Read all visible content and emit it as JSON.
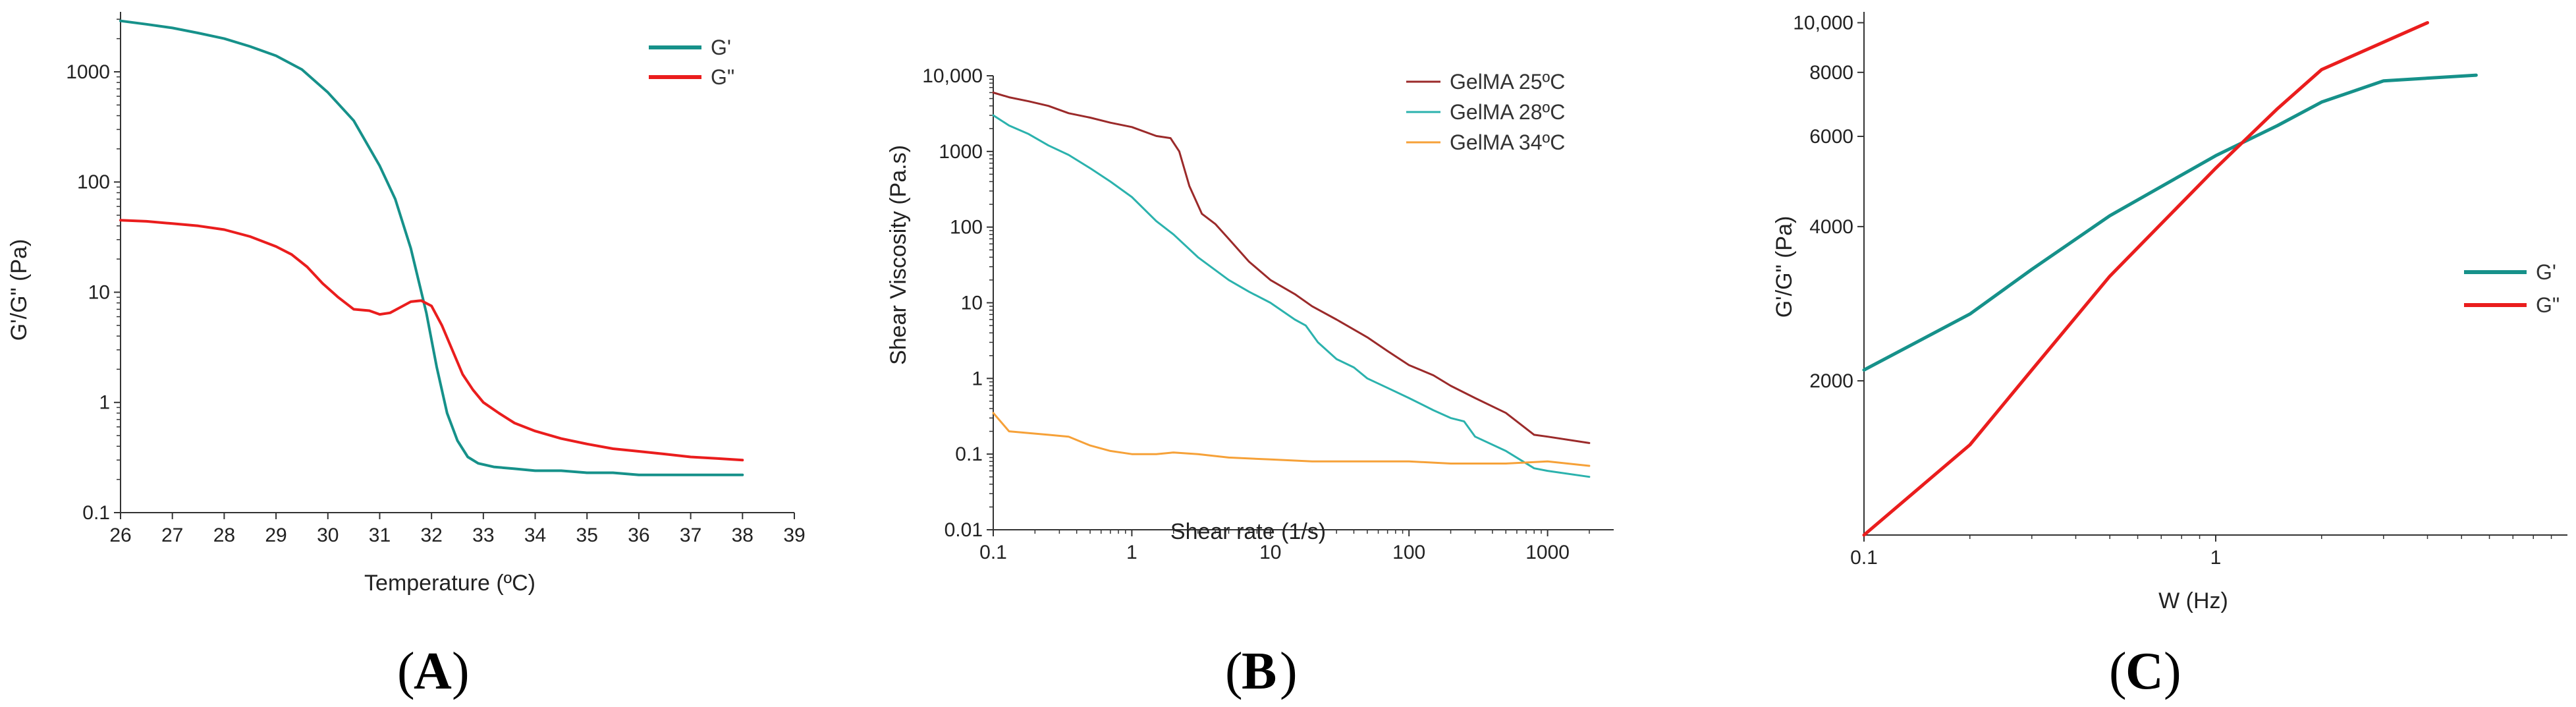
{
  "colors": {
    "teal": "#16918a",
    "red": "#ea1d1d",
    "brown": "#9b2a2a",
    "teal_light": "#2bb2ad",
    "orange": "#f6a138",
    "axis": "#333333"
  },
  "chart_data": [
    {
      "id": "A",
      "panel_label": "A",
      "type": "line",
      "xlabel": "Temperature (ºC)",
      "ylabel": "G'/G\" (Pa)",
      "xlim": [
        26,
        39
      ],
      "ylim": [
        0.1,
        3500
      ],
      "yscale": "log",
      "xticks": [
        {
          "v": 26,
          "label": "26"
        },
        {
          "v": 27,
          "label": "27"
        },
        {
          "v": 28,
          "label": "28"
        },
        {
          "v": 29,
          "label": "29"
        },
        {
          "v": 30,
          "label": "30"
        },
        {
          "v": 31,
          "label": "31"
        },
        {
          "v": 32,
          "label": "32"
        },
        {
          "v": 33,
          "label": "33"
        },
        {
          "v": 34,
          "label": "34"
        },
        {
          "v": 35,
          "label": "35"
        },
        {
          "v": 36,
          "label": "36"
        },
        {
          "v": 37,
          "label": "37"
        },
        {
          "v": 38,
          "label": "38"
        },
        {
          "v": 39,
          "label": "39"
        }
      ],
      "yticks": [
        {
          "v": 0.1,
          "label": "0.1"
        },
        {
          "v": 1,
          "label": "1"
        },
        {
          "v": 10,
          "label": "10"
        },
        {
          "v": 100,
          "label": "100"
        },
        {
          "v": 1000,
          "label": "1000"
        }
      ],
      "legend_position": "top-right",
      "series": [
        {
          "name": "G'",
          "color": "#16918a",
          "x": [
            26,
            26.5,
            27,
            27.5,
            28,
            28.5,
            29,
            29.5,
            30,
            30.5,
            31,
            31.3,
            31.6,
            31.9,
            32.1,
            32.3,
            32.5,
            32.7,
            32.9,
            33.2,
            33.6,
            34,
            34.5,
            35,
            35.5,
            36,
            36.5,
            37,
            37.5,
            38
          ],
          "y": [
            2900,
            2700,
            2500,
            2250,
            2000,
            1700,
            1400,
            1050,
            650,
            360,
            140,
            70,
            25,
            6.5,
            2.1,
            0.8,
            0.45,
            0.32,
            0.28,
            0.26,
            0.25,
            0.24,
            0.24,
            0.23,
            0.23,
            0.22,
            0.22,
            0.22,
            0.22,
            0.22
          ]
        },
        {
          "name": "G\"",
          "color": "#ea1d1d",
          "x": [
            26,
            26.5,
            27,
            27.5,
            28,
            28.5,
            29,
            29.3,
            29.6,
            29.9,
            30.2,
            30.5,
            30.8,
            31,
            31.2,
            31.4,
            31.6,
            31.8,
            32,
            32.2,
            32.4,
            32.6,
            32.8,
            33,
            33.3,
            33.6,
            34,
            34.5,
            35,
            35.5,
            36,
            36.5,
            37,
            37.5,
            38
          ],
          "y": [
            45,
            44,
            42,
            40,
            37,
            32,
            26,
            22,
            17,
            12,
            9,
            7,
            6.8,
            6.3,
            6.5,
            7.3,
            8.2,
            8.4,
            7.5,
            5,
            3,
            1.8,
            1.3,
            1,
            0.8,
            0.65,
            0.55,
            0.47,
            0.42,
            0.38,
            0.36,
            0.34,
            0.32,
            0.31,
            0.3
          ]
        }
      ]
    },
    {
      "id": "B",
      "panel_label": "B",
      "type": "line",
      "xlabel": "Shear rate (1/s)",
      "ylabel": "Shear Viscosity (Pa.s)",
      "xscale": "log",
      "yscale": "log",
      "xlim": [
        0.1,
        3000
      ],
      "ylim": [
        0.01,
        10000
      ],
      "xticks": [
        {
          "v": 0.1,
          "label": "0.1"
        },
        {
          "v": 1,
          "label": "1"
        },
        {
          "v": 10,
          "label": "10"
        },
        {
          "v": 100,
          "label": "100"
        },
        {
          "v": 1000,
          "label": "1000"
        }
      ],
      "yticks": [
        {
          "v": 0.01,
          "label": "0.01"
        },
        {
          "v": 0.1,
          "label": "0.1"
        },
        {
          "v": 1,
          "label": "1"
        },
        {
          "v": 10,
          "label": "10"
        },
        {
          "v": 100,
          "label": "100"
        },
        {
          "v": 1000,
          "label": "1000"
        },
        {
          "v": 10000,
          "label": "10,000"
        }
      ],
      "legend_position": "top-right",
      "series": [
        {
          "name": "GelMA 25ºC",
          "color": "#9b2a2a",
          "x": [
            0.1,
            0.13,
            0.18,
            0.25,
            0.35,
            0.5,
            0.7,
            1,
            1.5,
            1.9,
            2.2,
            2.6,
            3.2,
            4,
            5,
            7,
            10,
            15,
            20,
            30,
            50,
            70,
            100,
            150,
            200,
            300,
            500,
            800,
            1000,
            2000
          ],
          "y": [
            6000,
            5200,
            4600,
            4000,
            3200,
            2800,
            2400,
            2100,
            1600,
            1500,
            1000,
            350,
            150,
            110,
            70,
            35,
            20,
            13,
            9,
            6,
            3.5,
            2.3,
            1.5,
            1.1,
            0.8,
            0.55,
            0.35,
            0.18,
            0.17,
            0.14
          ]
        },
        {
          "name": "GelMA 28ºC",
          "color": "#2bb2ad",
          "x": [
            0.1,
            0.13,
            0.18,
            0.25,
            0.35,
            0.5,
            0.7,
            1,
            1.5,
            2,
            3,
            5,
            7,
            10,
            15,
            18,
            22,
            30,
            40,
            50,
            70,
            100,
            150,
            200,
            250,
            300,
            500,
            800,
            1000,
            2000
          ],
          "y": [
            3000,
            2200,
            1700,
            1200,
            900,
            600,
            400,
            250,
            120,
            80,
            40,
            20,
            14,
            10,
            6,
            5,
            3,
            1.8,
            1.4,
            1,
            0.75,
            0.55,
            0.38,
            0.3,
            0.27,
            0.17,
            0.11,
            0.065,
            0.06,
            0.05
          ]
        },
        {
          "name": "GelMA 34ºC",
          "color": "#f6a138",
          "x": [
            0.1,
            0.13,
            0.18,
            0.25,
            0.35,
            0.5,
            0.7,
            1,
            1.5,
            2,
            3,
            5,
            10,
            20,
            50,
            100,
            200,
            500,
            1000,
            2000
          ],
          "y": [
            0.35,
            0.2,
            0.19,
            0.18,
            0.17,
            0.13,
            0.11,
            0.1,
            0.1,
            0.105,
            0.1,
            0.09,
            0.085,
            0.08,
            0.08,
            0.08,
            0.075,
            0.075,
            0.08,
            0.07
          ]
        }
      ]
    },
    {
      "id": "C",
      "panel_label": "C",
      "type": "line",
      "xlabel": "W (Hz)",
      "ylabel": "G'/G\" (Pa)",
      "xscale": "log",
      "yscale": "log",
      "xlim": [
        0.1,
        10
      ],
      "ylim": [
        1000,
        10500
      ],
      "xticks": [
        {
          "v": 0.1,
          "label": "0.1"
        },
        {
          "v": 1,
          "label": "1"
        }
      ],
      "yticks": [
        {
          "v": 2000,
          "label": "2000"
        },
        {
          "v": 4000,
          "label": "4000"
        },
        {
          "v": 6000,
          "label": "6000"
        },
        {
          "v": 8000,
          "label": "8000"
        },
        {
          "v": 10000,
          "label": "10,000"
        }
      ],
      "legend_position": "right",
      "series": [
        {
          "name": "G'",
          "color": "#16918a",
          "x": [
            0.1,
            0.2,
            0.3,
            0.5,
            1,
            1.5,
            2,
            3,
            5.5
          ],
          "y": [
            2100,
            2700,
            3300,
            4200,
            5500,
            6300,
            7000,
            7700,
            7900
          ]
        },
        {
          "name": "G\"",
          "color": "#ea1d1d",
          "x": [
            0.1,
            0.2,
            0.3,
            0.5,
            1,
            1.5,
            2,
            4
          ],
          "y": [
            1000,
            1500,
            2100,
            3200,
            5200,
            6800,
            8100,
            10000
          ]
        }
      ]
    }
  ]
}
